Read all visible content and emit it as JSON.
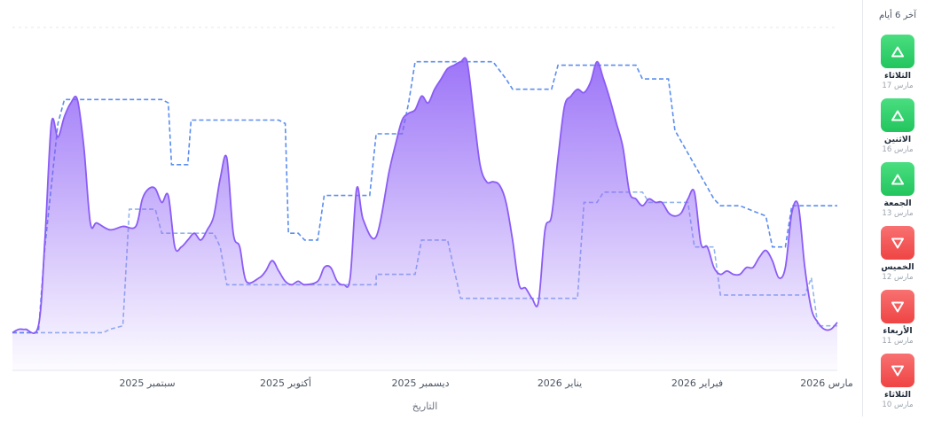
{
  "chart_data": {
    "type": "area",
    "xlabel": "التاريخ",
    "x_ticks": [
      "سبتمبر 2025",
      "أكتوبر 2025",
      "ديسمبر 2025",
      "يناير 2026",
      "فبراير 2026",
      "مارس 2026"
    ],
    "ylim": [
      0,
      100
    ],
    "grid": true,
    "series": [
      {
        "style": "area",
        "color": "#8b5cf6",
        "values": [
          [
            0,
            11
          ],
          [
            1,
            12
          ],
          [
            2,
            12
          ],
          [
            4,
            13
          ],
          [
            5,
            38
          ],
          [
            6,
            72
          ],
          [
            7,
            68
          ],
          [
            8,
            74
          ],
          [
            9,
            78
          ],
          [
            10,
            79
          ],
          [
            11,
            65
          ],
          [
            12,
            43
          ],
          [
            13,
            43
          ],
          [
            15,
            41
          ],
          [
            17,
            42
          ],
          [
            19,
            42
          ],
          [
            20,
            50
          ],
          [
            21,
            53
          ],
          [
            22,
            53
          ],
          [
            23,
            49
          ],
          [
            24,
            51
          ],
          [
            25,
            36
          ],
          [
            26,
            36
          ],
          [
            27,
            38
          ],
          [
            28,
            40
          ],
          [
            29,
            38
          ],
          [
            30,
            41
          ],
          [
            31,
            45
          ],
          [
            32,
            56
          ],
          [
            33,
            62
          ],
          [
            34,
            40
          ],
          [
            35,
            36
          ],
          [
            36,
            26
          ],
          [
            38,
            27
          ],
          [
            39,
            29
          ],
          [
            40,
            32
          ],
          [
            41,
            29
          ],
          [
            42,
            26
          ],
          [
            43,
            25
          ],
          [
            44,
            26
          ],
          [
            45,
            25
          ],
          [
            47,
            26
          ],
          [
            48,
            30
          ],
          [
            49,
            30
          ],
          [
            50,
            26
          ],
          [
            51,
            25
          ],
          [
            52,
            27
          ],
          [
            53,
            53
          ],
          [
            54,
            44
          ],
          [
            56,
            39
          ],
          [
            58,
            58
          ],
          [
            59,
            66
          ],
          [
            60,
            73
          ],
          [
            61,
            75
          ],
          [
            62,
            76
          ],
          [
            63,
            80
          ],
          [
            64,
            78
          ],
          [
            65,
            82
          ],
          [
            66,
            85
          ],
          [
            67,
            88
          ],
          [
            68,
            89
          ],
          [
            69,
            90
          ],
          [
            70,
            90
          ],
          [
            71,
            75
          ],
          [
            72,
            60
          ],
          [
            73,
            55
          ],
          [
            74,
            55
          ],
          [
            75,
            54
          ],
          [
            76,
            49
          ],
          [
            77,
            38
          ],
          [
            78,
            25
          ],
          [
            79,
            24
          ],
          [
            80,
            21
          ],
          [
            81,
            20
          ],
          [
            82,
            41
          ],
          [
            83,
            45
          ],
          [
            84,
            62
          ],
          [
            85,
            77
          ],
          [
            86,
            80
          ],
          [
            87,
            82
          ],
          [
            88,
            81
          ],
          [
            89,
            84
          ],
          [
            90,
            90
          ],
          [
            91,
            85
          ],
          [
            92,
            79
          ],
          [
            93,
            72
          ],
          [
            94,
            65
          ],
          [
            95,
            52
          ],
          [
            96,
            50
          ],
          [
            97,
            48
          ],
          [
            98,
            50
          ],
          [
            99,
            49
          ],
          [
            100,
            49
          ],
          [
            101,
            46
          ],
          [
            102,
            45
          ],
          [
            103,
            46
          ],
          [
            104,
            50
          ],
          [
            105,
            52
          ],
          [
            106,
            37
          ],
          [
            107,
            36
          ],
          [
            108,
            30
          ],
          [
            109,
            28
          ],
          [
            110,
            29
          ],
          [
            111,
            28
          ],
          [
            112,
            28
          ],
          [
            113,
            30
          ],
          [
            114,
            30
          ],
          [
            115,
            33
          ],
          [
            116,
            35
          ],
          [
            117,
            32
          ],
          [
            118,
            27
          ],
          [
            119,
            30
          ],
          [
            120,
            46
          ],
          [
            121,
            48
          ],
          [
            122,
            30
          ],
          [
            123,
            18
          ],
          [
            124,
            14
          ],
          [
            125,
            12
          ],
          [
            126,
            12
          ],
          [
            127,
            14
          ]
        ]
      },
      {
        "style": "dashed-step",
        "color": "#5b8def",
        "values": [
          [
            0,
            11
          ],
          [
            4,
            11
          ],
          [
            5,
            36
          ],
          [
            7,
            72
          ],
          [
            8,
            79
          ],
          [
            23,
            79
          ],
          [
            24,
            78
          ],
          [
            24.5,
            60
          ],
          [
            27,
            60
          ],
          [
            27.5,
            73
          ],
          [
            41,
            73
          ],
          [
            42,
            72
          ],
          [
            42.5,
            40
          ],
          [
            44,
            40
          ],
          [
            45,
            38
          ],
          [
            47,
            38
          ],
          [
            48,
            51
          ],
          [
            55,
            51
          ],
          [
            56,
            69
          ],
          [
            60,
            69
          ],
          [
            61,
            78
          ],
          [
            62,
            90
          ],
          [
            74,
            90
          ],
          [
            76,
            85
          ],
          [
            77,
            82
          ],
          [
            83,
            82
          ],
          [
            84,
            89
          ],
          [
            96,
            89
          ],
          [
            97,
            85
          ],
          [
            101,
            85
          ],
          [
            102,
            70
          ],
          [
            108,
            50
          ],
          [
            109,
            48
          ],
          [
            112,
            48
          ],
          [
            116,
            45
          ],
          [
            117,
            36
          ],
          [
            119,
            36
          ],
          [
            120,
            48
          ],
          [
            127,
            48
          ]
        ]
      },
      {
        "style": "dashed-step",
        "color": "#93b4ef",
        "values": [
          [
            0,
            11
          ],
          [
            14,
            11
          ],
          [
            15,
            12
          ],
          [
            17,
            13
          ],
          [
            18,
            47
          ],
          [
            22,
            47
          ],
          [
            23,
            40
          ],
          [
            31,
            40
          ],
          [
            32,
            36
          ],
          [
            33,
            25
          ],
          [
            46,
            25
          ],
          [
            47,
            25
          ],
          [
            56,
            25
          ],
          [
            56,
            28
          ],
          [
            62,
            28
          ],
          [
            63,
            38
          ],
          [
            67,
            38
          ],
          [
            69,
            21
          ],
          [
            87,
            21
          ],
          [
            88,
            49
          ],
          [
            90,
            49
          ],
          [
            91,
            52
          ],
          [
            97,
            52
          ],
          [
            98,
            49
          ],
          [
            104,
            49
          ],
          [
            105,
            36
          ],
          [
            108,
            36
          ],
          [
            109,
            22
          ],
          [
            122,
            22
          ],
          [
            123,
            27
          ],
          [
            124,
            13
          ],
          [
            127,
            13
          ]
        ]
      }
    ]
  },
  "sidebar": {
    "title": "آخر 6 أيام",
    "days": [
      {
        "name": "الثلاثاء",
        "date": "17 مارس",
        "trend": "up"
      },
      {
        "name": "الاثنين",
        "date": "16 مارس",
        "trend": "up"
      },
      {
        "name": "الجمعة",
        "date": "13 مارس",
        "trend": "up"
      },
      {
        "name": "الخميس",
        "date": "12 مارس",
        "trend": "down"
      },
      {
        "name": "الأربعاء",
        "date": "11 مارس",
        "trend": "down"
      },
      {
        "name": "الثلاثاء",
        "date": "10 مارس",
        "trend": "down"
      }
    ]
  }
}
